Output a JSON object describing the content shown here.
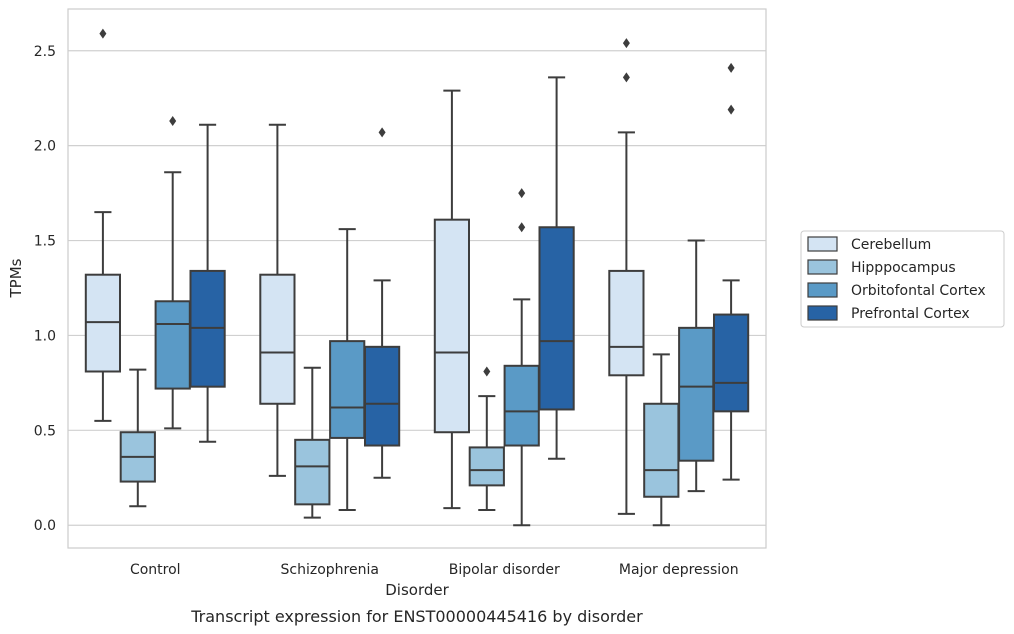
{
  "caption": "Transcript expression for ENST00000445416 by disorder",
  "chart_data": {
    "type": "box",
    "xlabel": "Disorder",
    "ylabel": "TPMs",
    "ylim": [
      -0.12,
      2.72
    ],
    "yticks": [
      "0.0",
      "0.5",
      "1.0",
      "1.5",
      "2.0",
      "2.5"
    ],
    "grid": "horizontal",
    "legend_position": "right",
    "categories": [
      "Control",
      "Schizophrenia",
      "Bipolar disorder",
      "Major depression"
    ],
    "series": [
      {
        "name": "Cerebellum",
        "color": "#d4e4f3",
        "boxes": [
          {
            "whisker_low": 0.55,
            "q1": 0.81,
            "median": 1.07,
            "q3": 1.32,
            "whisker_high": 1.65,
            "outliers": [
              2.59
            ]
          },
          {
            "whisker_low": 0.26,
            "q1": 0.64,
            "median": 0.91,
            "q3": 1.32,
            "whisker_high": 2.11,
            "outliers": []
          },
          {
            "whisker_low": 0.09,
            "q1": 0.49,
            "median": 0.91,
            "q3": 1.61,
            "whisker_high": 2.29,
            "outliers": []
          },
          {
            "whisker_low": 0.06,
            "q1": 0.79,
            "median": 0.94,
            "q3": 1.34,
            "whisker_high": 2.07,
            "outliers": [
              2.36,
              2.54
            ]
          }
        ]
      },
      {
        "name": "Hipppocampus",
        "color": "#9ac4dd",
        "boxes": [
          {
            "whisker_low": 0.1,
            "q1": 0.23,
            "median": 0.36,
            "q3": 0.49,
            "whisker_high": 0.82,
            "outliers": []
          },
          {
            "whisker_low": 0.04,
            "q1": 0.11,
            "median": 0.31,
            "q3": 0.45,
            "whisker_high": 0.83,
            "outliers": []
          },
          {
            "whisker_low": 0.08,
            "q1": 0.21,
            "median": 0.29,
            "q3": 0.41,
            "whisker_high": 0.68,
            "outliers": [
              0.81
            ]
          },
          {
            "whisker_low": 0.0,
            "q1": 0.15,
            "median": 0.29,
            "q3": 0.64,
            "whisker_high": 0.9,
            "outliers": []
          }
        ]
      },
      {
        "name": "Orbitofontal Cortex",
        "color": "#5a9ac6",
        "boxes": [
          {
            "whisker_low": 0.51,
            "q1": 0.72,
            "median": 1.06,
            "q3": 1.18,
            "whisker_high": 1.86,
            "outliers": [
              2.13
            ]
          },
          {
            "whisker_low": 0.08,
            "q1": 0.46,
            "median": 0.62,
            "q3": 0.97,
            "whisker_high": 1.56,
            "outliers": []
          },
          {
            "whisker_low": 0.0,
            "q1": 0.42,
            "median": 0.6,
            "q3": 0.84,
            "whisker_high": 1.19,
            "outliers": [
              1.57,
              1.75
            ]
          },
          {
            "whisker_low": 0.18,
            "q1": 0.34,
            "median": 0.73,
            "q3": 1.04,
            "whisker_high": 1.5,
            "outliers": []
          }
        ]
      },
      {
        "name": "Prefrontal Cortex",
        "color": "#2763a5",
        "boxes": [
          {
            "whisker_low": 0.44,
            "q1": 0.73,
            "median": 1.04,
            "q3": 1.34,
            "whisker_high": 2.11,
            "outliers": []
          },
          {
            "whisker_low": 0.25,
            "q1": 0.42,
            "median": 0.64,
            "q3": 0.94,
            "whisker_high": 1.29,
            "outliers": [
              2.07
            ]
          },
          {
            "whisker_low": 0.35,
            "q1": 0.61,
            "median": 0.97,
            "q3": 1.57,
            "whisker_high": 2.36,
            "outliers": []
          },
          {
            "whisker_low": 0.24,
            "q1": 0.6,
            "median": 0.75,
            "q3": 1.11,
            "whisker_high": 1.29,
            "outliers": [
              2.19,
              2.41
            ]
          }
        ]
      }
    ]
  }
}
